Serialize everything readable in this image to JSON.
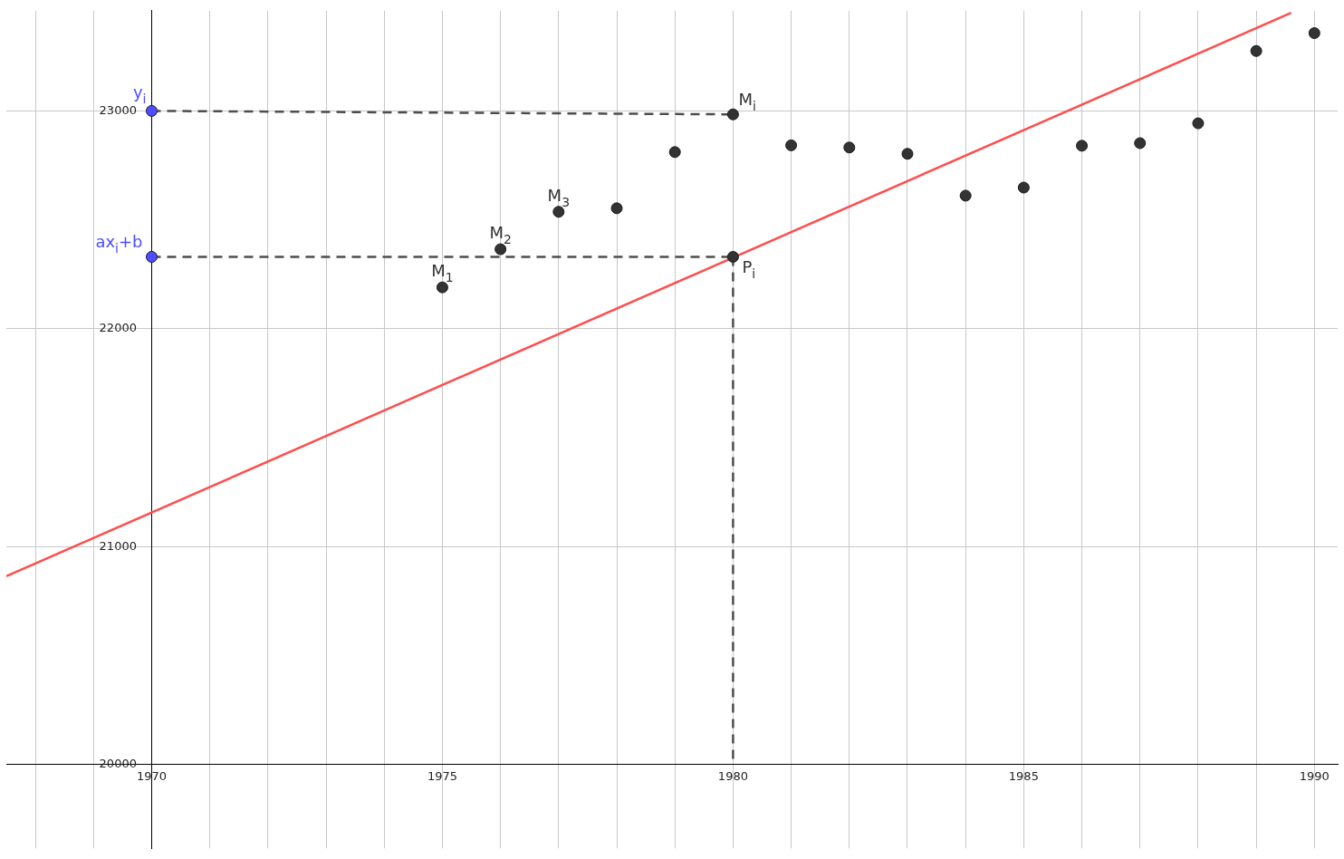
{
  "chart_data": {
    "type": "scatter",
    "xlim": [
      1967.5,
      1990.4
    ],
    "ylim": [
      19615,
      23460
    ],
    "xticks": [
      {
        "value": 1968,
        "label": null
      },
      {
        "value": 1969,
        "label": null
      },
      1970,
      {
        "value": 1971,
        "label": null
      },
      {
        "value": 1972,
        "label": null
      },
      {
        "value": 1973,
        "label": null
      },
      {
        "value": 1974,
        "label": null
      },
      1975,
      {
        "value": 1976,
        "label": null
      },
      {
        "value": 1977,
        "label": null
      },
      {
        "value": 1978,
        "label": null
      },
      {
        "value": 1979,
        "label": null
      },
      1980,
      {
        "value": 1981,
        "label": null
      },
      {
        "value": 1982,
        "label": null
      },
      {
        "value": 1983,
        "label": null
      },
      {
        "value": 1984,
        "label": null
      },
      1985,
      {
        "value": 1986,
        "label": null
      },
      {
        "value": 1987,
        "label": null
      },
      {
        "value": 1988,
        "label": null
      },
      {
        "value": 1989,
        "label": null
      },
      1990
    ],
    "yticks": [
      20000,
      21000,
      22000,
      23000
    ],
    "grid": true,
    "legend": false,
    "series": [
      {
        "color": "#333333",
        "marker": "circle",
        "x": [
          1975,
          1976,
          1977,
          1978,
          1979,
          1980,
          1981,
          1982,
          1983,
          1984,
          1985,
          1986,
          1987,
          1988,
          1989,
          1990
        ],
        "values": [
          22190,
          22365,
          22537,
          22553,
          22811,
          22984,
          22842,
          22832,
          22803,
          22611,
          22648,
          22840,
          22852,
          22943,
          23275,
          23357
        ]
      },
      {
        "type": "line",
        "color": "#ff4d4d",
        "marker": "none",
        "line_style": "solid",
        "x": [
          1967.5,
          1989.6
        ],
        "values": [
          20864,
          23450
        ]
      },
      {
        "type": "line",
        "color": "#4d4d4d",
        "marker": "none",
        "line_style": "dashed",
        "x": [
          1970,
          1980
        ],
        "values": [
          23000,
          22984
        ]
      },
      {
        "type": "line",
        "color": "#4d4d4d",
        "marker": "none",
        "line_style": "dashed",
        "x": [
          1970,
          1980
        ],
        "values": [
          22330,
          22330
        ]
      },
      {
        "type": "line",
        "color": "#4d4d4d",
        "marker": "none",
        "line_style": "dashed",
        "x": [
          1980,
          1980
        ],
        "values": [
          22330,
          20000
        ]
      },
      {
        "color": "#333333",
        "marker": "circle",
        "x": [
          1980
        ],
        "values": [
          22330
        ]
      },
      {
        "color": "#4d4dff",
        "marker": "circle",
        "x": [
          1970,
          1970
        ],
        "values": [
          23000,
          22330
        ]
      }
    ],
    "annotations": [
      {
        "text": "M$_{1}$",
        "x": 1975,
        "y": 22190
      },
      {
        "text": "M$_{2}$",
        "x": 1976,
        "y": 22365
      },
      {
        "text": "M$_{3}$",
        "x": 1977,
        "y": 22537
      },
      {
        "text": "M$_{i}$",
        "x": 1980,
        "y": 22984
      },
      {
        "text": "P$_{i}$",
        "x": 1980,
        "y": 22330
      },
      {
        "text": "y$_{i}$",
        "x": 1970,
        "y": 23000
      },
      {
        "text": "ax$_{i}$+b",
        "x": 1970,
        "y": 22330
      }
    ]
  }
}
